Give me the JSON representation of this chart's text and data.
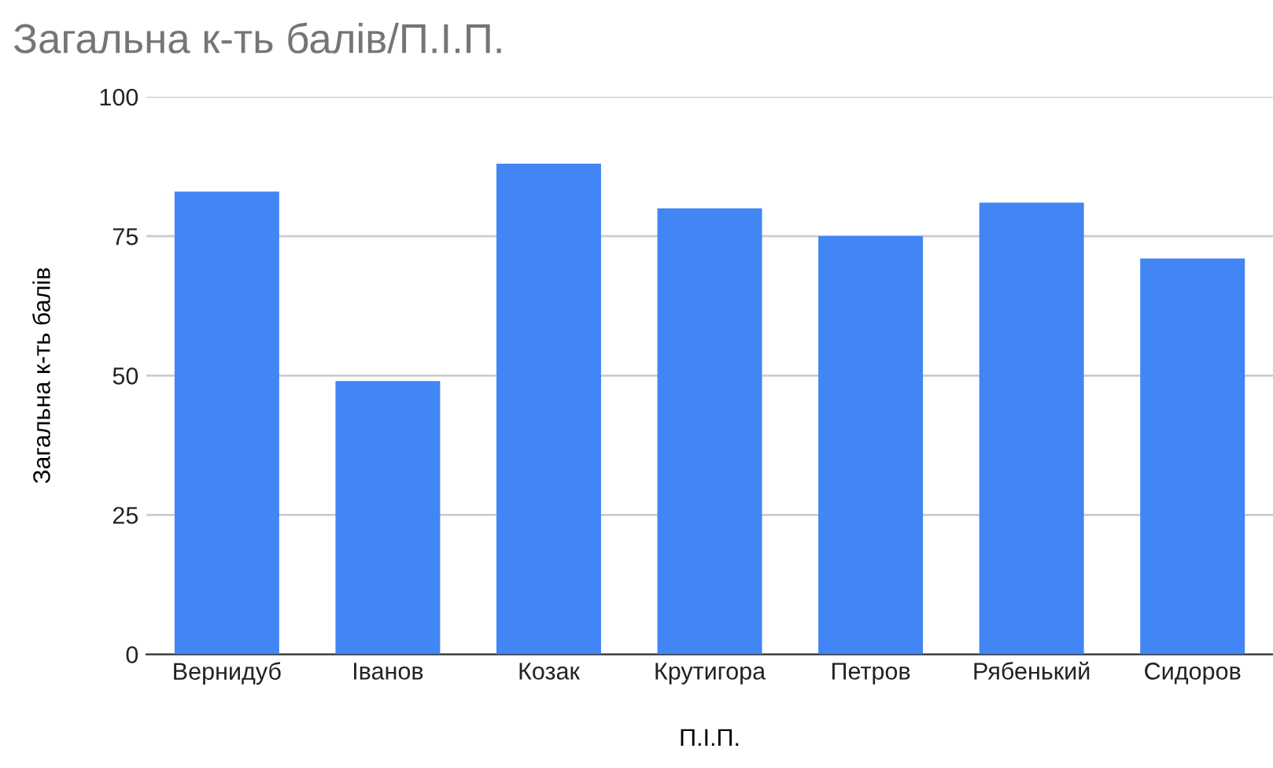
{
  "chart_data": {
    "type": "bar",
    "title": "Загальна к-ть балів/П.І.П.",
    "xlabel": "П.І.П.",
    "ylabel": "Загальна к-ть балів",
    "categories": [
      "Вернидуб",
      "Іванов",
      "Козак",
      "Крутигора",
      "Петров",
      "Рябенький",
      "Сидоров"
    ],
    "values": [
      83,
      49,
      88,
      80,
      75,
      81,
      71
    ],
    "color": "#4285f4",
    "ylim": [
      0,
      100
    ],
    "yticks": [
      0,
      25,
      50,
      75,
      100
    ],
    "grid": "y"
  }
}
